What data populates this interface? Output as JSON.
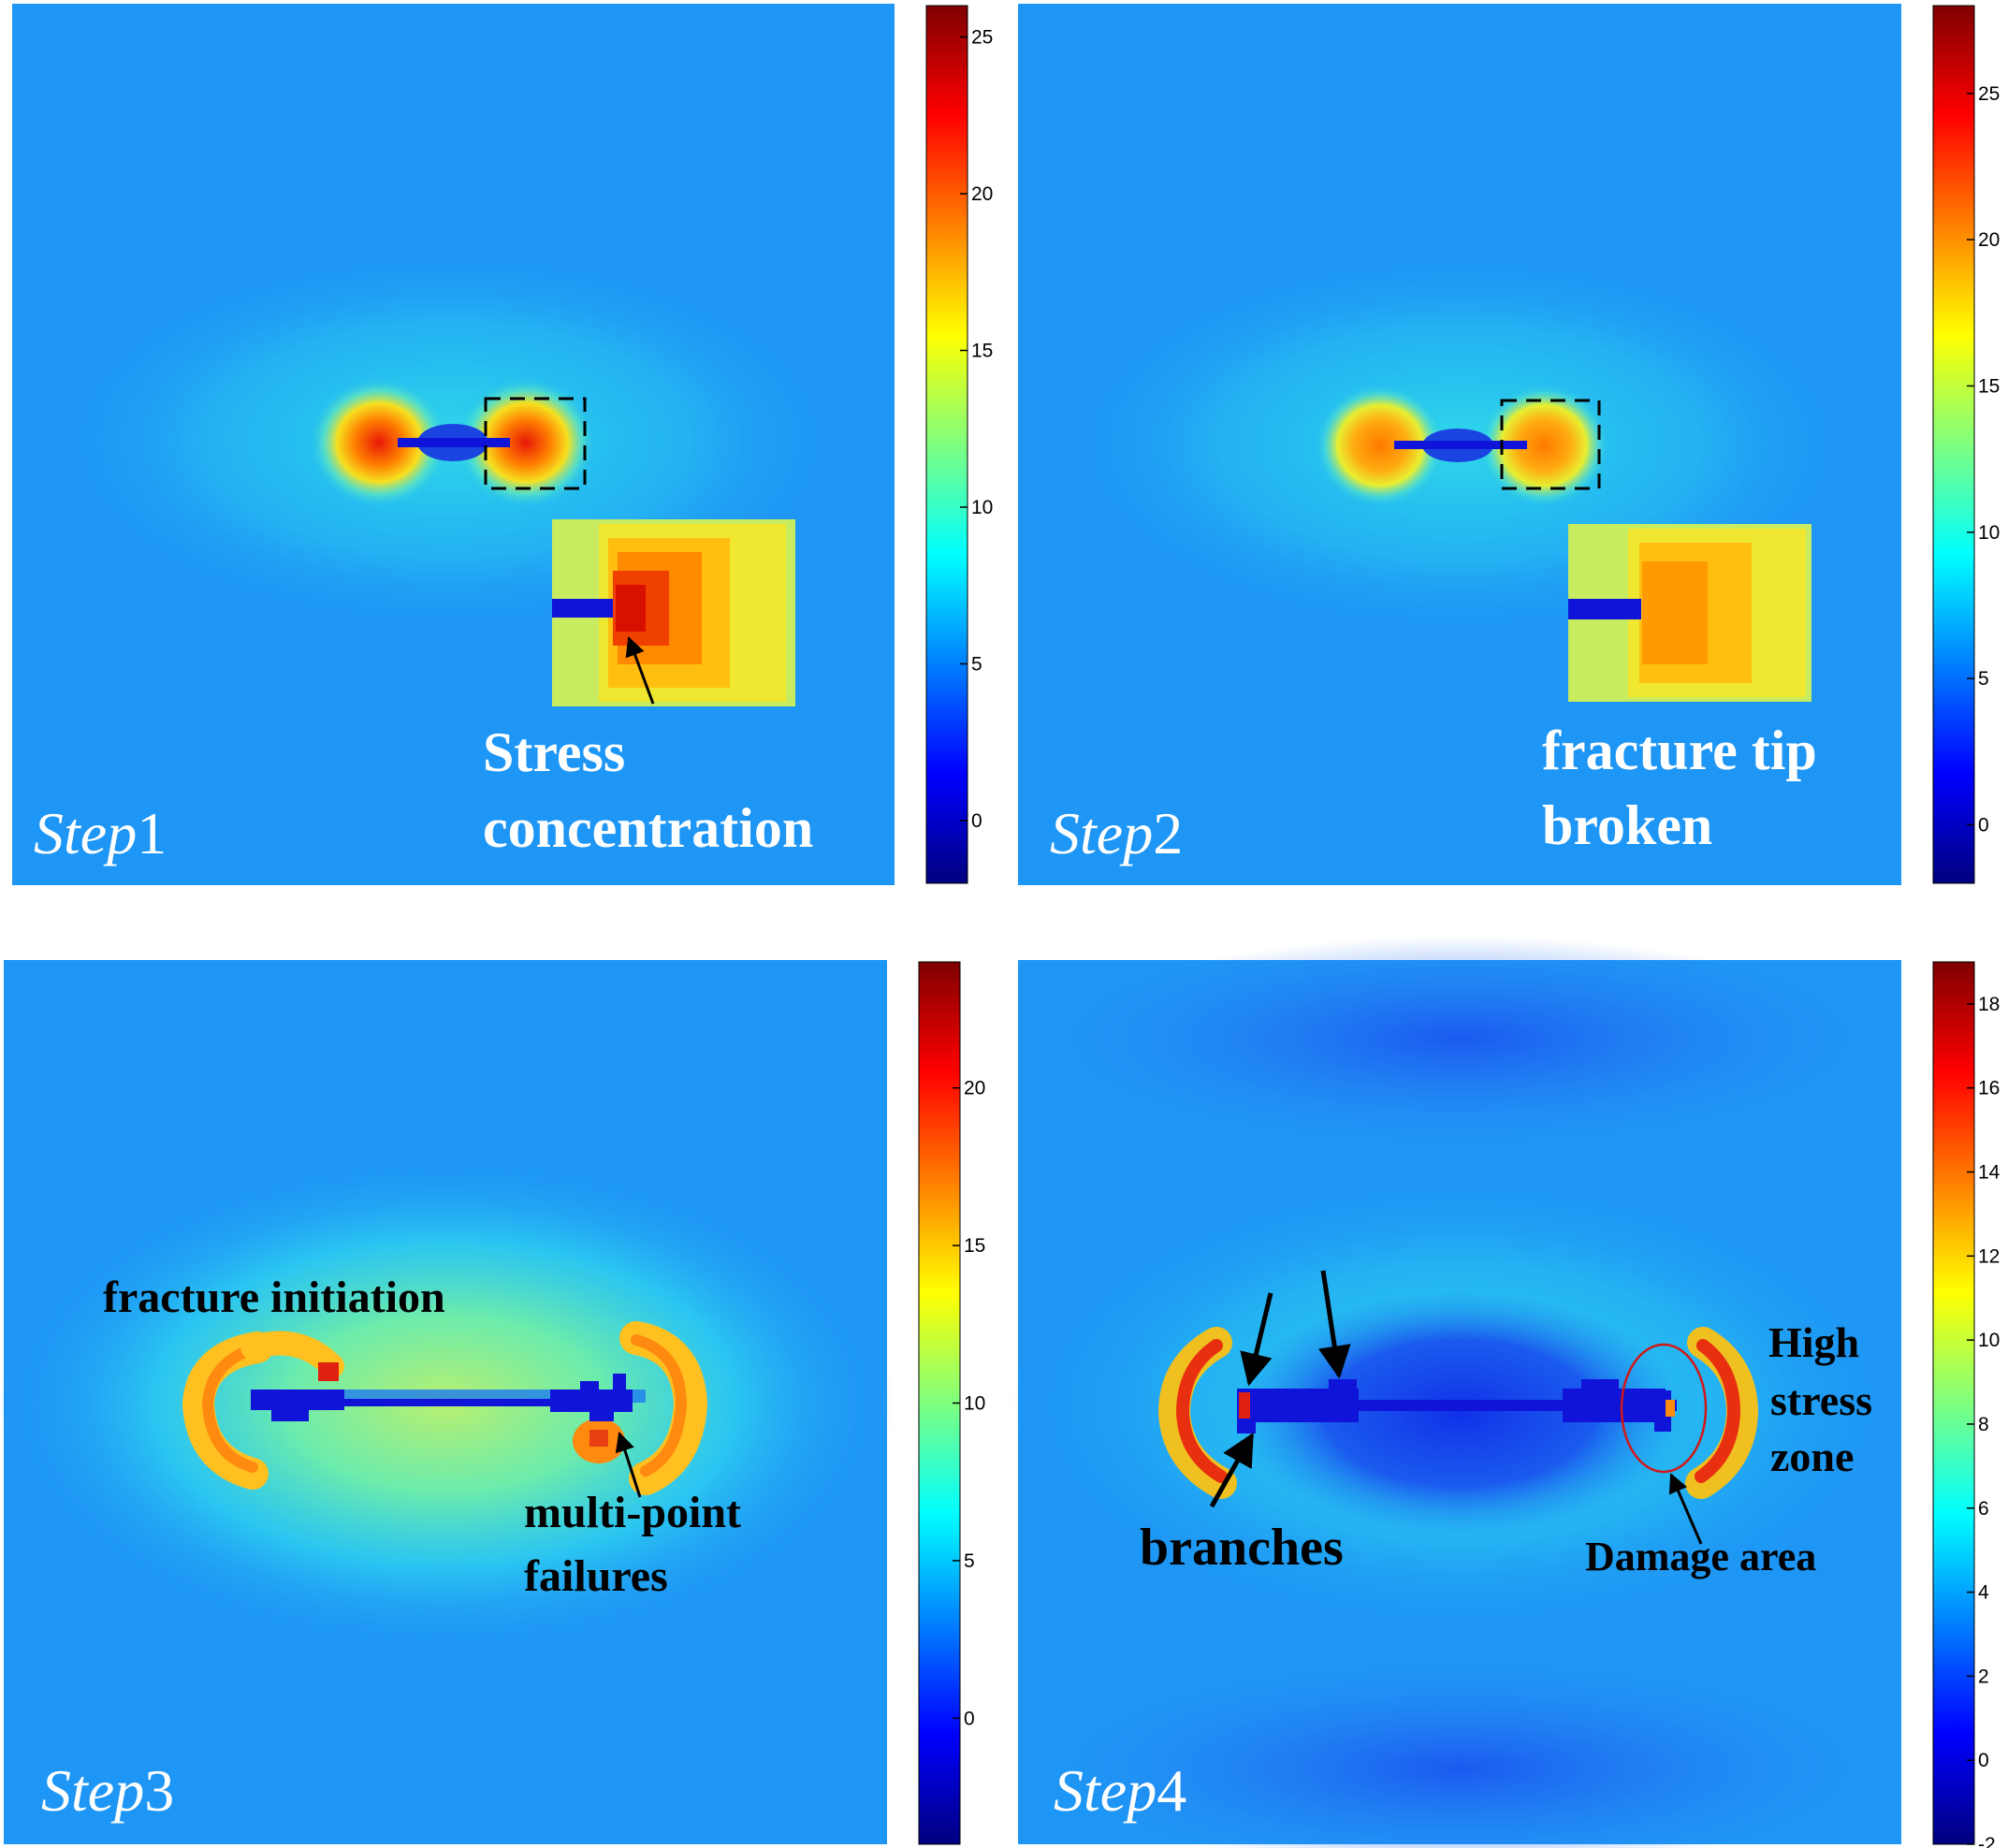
{
  "colors": {
    "background": "#1E96F5",
    "crack": "#1014D8",
    "colormap": [
      "#00007F",
      "#0000FF",
      "#007FFF",
      "#00FFFF",
      "#7FFF7F",
      "#FFFF00",
      "#FF7F00",
      "#FF0000",
      "#7F0000"
    ],
    "damage_circle": "#D01818"
  },
  "chart_data": [
    {
      "type": "heatmap",
      "step": {
        "word": "Step",
        "num": "1"
      },
      "colorbar": {
        "min": -2,
        "max": 26,
        "ticks": [
          "0",
          "5",
          "10",
          "15",
          "20",
          "25"
        ],
        "tick_values": [
          0,
          5,
          10,
          15,
          20,
          25
        ]
      },
      "annotations": [
        {
          "lines": [
            "Stress",
            "concentration"
          ]
        }
      ]
    },
    {
      "type": "heatmap",
      "step": {
        "word": "Step",
        "num": "2"
      },
      "colorbar": {
        "min": -2,
        "max": 28,
        "ticks": [
          "0",
          "5",
          "10",
          "15",
          "20",
          "25"
        ],
        "tick_values": [
          0,
          5,
          10,
          15,
          20,
          25
        ]
      },
      "annotations": [
        {
          "lines": [
            "fracture tip",
            "broken"
          ]
        }
      ]
    },
    {
      "type": "heatmap",
      "step": {
        "word": "Step",
        "num": "3"
      },
      "colorbar": {
        "min": -4,
        "max": 24,
        "ticks": [
          "0",
          "5",
          "10",
          "15",
          "20"
        ],
        "tick_values": [
          0,
          5,
          10,
          15,
          20
        ]
      },
      "annotations": [
        {
          "lines": [
            "fracture initiation"
          ]
        },
        {
          "lines": [
            "multi-point",
            "failures"
          ]
        }
      ]
    },
    {
      "type": "heatmap",
      "step": {
        "word": "Step",
        "num": "4"
      },
      "colorbar": {
        "min": -2,
        "max": 19,
        "ticks": [
          "-2",
          "0",
          "2",
          "4",
          "6",
          "8",
          "10",
          "12",
          "14",
          "16",
          "18"
        ],
        "tick_values": [
          -2,
          0,
          2,
          4,
          6,
          8,
          10,
          12,
          14,
          16,
          18
        ]
      },
      "annotations": [
        {
          "lines": [
            "branches"
          ]
        },
        {
          "lines": [
            "High",
            "stress",
            "zone"
          ]
        },
        {
          "lines": [
            "Damage area"
          ]
        }
      ]
    }
  ]
}
